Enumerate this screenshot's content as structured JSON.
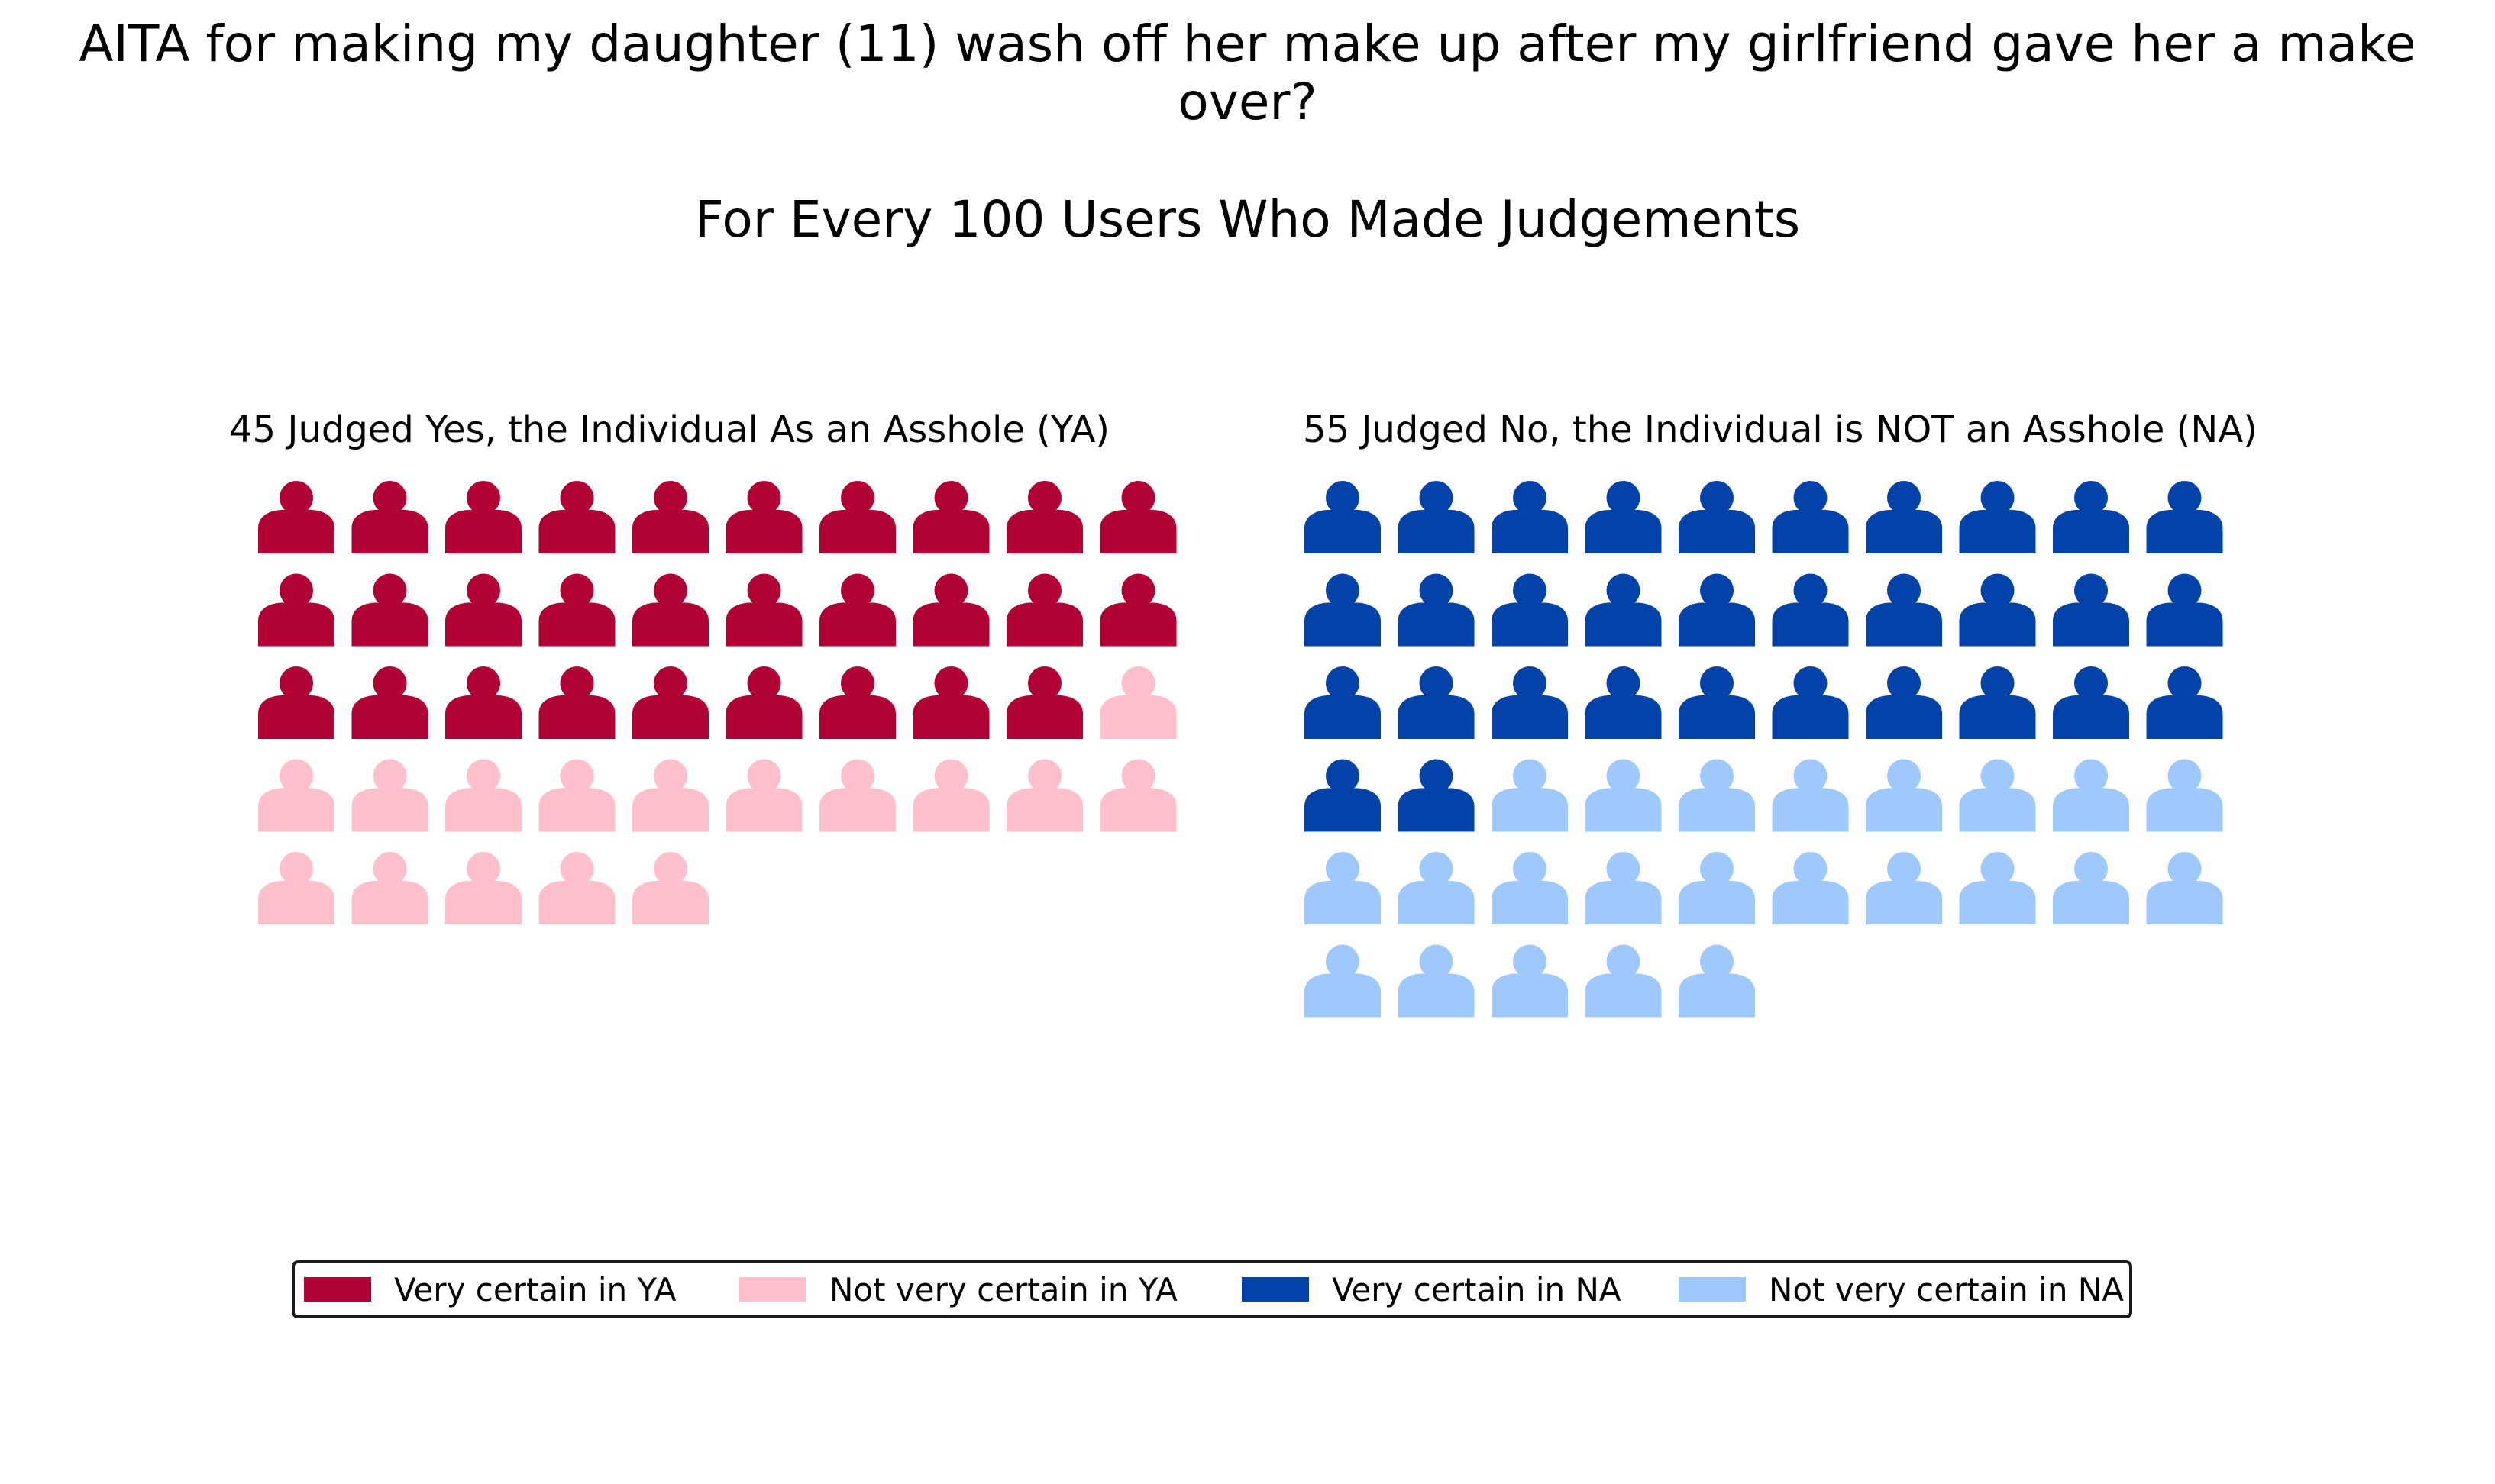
{
  "title_lines": [
    "AITA for making my daughter (11) wash off her make up after my girlfriend gave her a make",
    "over?"
  ],
  "subtitle": "For Every 100 Users Who Made Judgements",
  "chart_data": {
    "type": "waffle",
    "panels": [
      {
        "title": "45 Judged Yes, the Individual As an Asshole (YA)",
        "columns": 10,
        "icon": "person-icon",
        "series": [
          {
            "name": "Very certain in YA",
            "count": 29,
            "color": "#b10034"
          },
          {
            "name": "Not very certain in YA",
            "count": 16,
            "color": "#ffc0cb"
          }
        ]
      },
      {
        "title": "55 Judged No, the Individual is NOT an Asshole (NA)",
        "columns": 10,
        "icon": "person-icon",
        "series": [
          {
            "name": "Very certain in NA",
            "count": 32,
            "color": "#0342a8"
          },
          {
            "name": "Not very certain in NA",
            "count": 23,
            "color": "#9fc8fd"
          }
        ]
      }
    ],
    "legend": {
      "placement": "bottom-center",
      "entries": [
        {
          "label": "Very certain in YA",
          "color": "#b10034"
        },
        {
          "label": "Not very certain in YA",
          "color": "#ffc0cb"
        },
        {
          "label": "Very certain in NA",
          "color": "#0342a8"
        },
        {
          "label": "Not very certain in NA",
          "color": "#9fc8fd"
        }
      ]
    }
  }
}
